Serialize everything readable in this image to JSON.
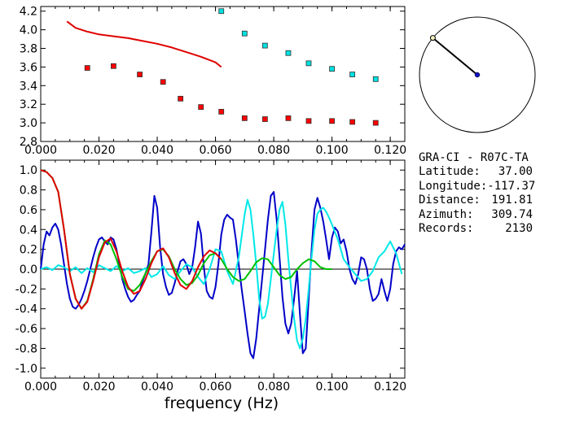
{
  "station": {
    "code": "GRA-CI - R07C-TA",
    "latitude_label": "Latitude:",
    "latitude": "37.00",
    "longitude_label": "Longitude:",
    "longitude": "-117.37",
    "distance_label": "Distance:",
    "distance": "191.81",
    "azimuth_label": "Azimuth:",
    "azimuth": "309.74",
    "records_label": "Records:",
    "records": "2130"
  },
  "azimuth_dial": {
    "azimuth_deg": 309.74
  },
  "chart_data": [
    {
      "type": "scatter",
      "title": "",
      "xlabel": "",
      "ylabel": "",
      "xlim": [
        0.0,
        0.125
      ],
      "ylim": [
        2.8,
        4.25
      ],
      "x_ticks": [
        "0.000",
        "0.020",
        "0.040",
        "0.060",
        "0.080",
        "0.100",
        "0.120"
      ],
      "y_ticks": [
        "2.8",
        "3.0",
        "3.2",
        "3.4",
        "3.6",
        "3.8",
        "4.0",
        "4.2"
      ],
      "series": [
        {
          "color": "#ff0000",
          "kind": "markers",
          "x": [
            0.016,
            0.025,
            0.034,
            0.042,
            0.048,
            0.055,
            0.062,
            0.07,
            0.077,
            0.085,
            0.092,
            0.1,
            0.107,
            0.115
          ],
          "y": [
            3.59,
            3.61,
            3.52,
            3.44,
            3.26,
            3.17,
            3.12,
            3.05,
            3.04,
            3.05,
            3.02,
            3.02,
            3.01,
            3.0
          ]
        },
        {
          "color": "#00e0e0",
          "kind": "markers",
          "x": [
            0.062,
            0.07,
            0.077,
            0.085,
            0.092,
            0.1,
            0.107,
            0.115
          ],
          "y": [
            4.2,
            3.96,
            3.83,
            3.75,
            3.64,
            3.58,
            3.52,
            3.47
          ]
        },
        {
          "color": "#e00000",
          "kind": "line",
          "x": [
            0.009,
            0.012,
            0.016,
            0.02,
            0.025,
            0.03,
            0.035,
            0.04,
            0.045,
            0.05,
            0.055,
            0.06,
            0.062
          ],
          "y": [
            4.09,
            4.02,
            3.98,
            3.95,
            3.93,
            3.91,
            3.88,
            3.85,
            3.81,
            3.76,
            3.71,
            3.65,
            3.6
          ]
        }
      ]
    },
    {
      "type": "line",
      "title": "",
      "xlabel": "frequency (Hz)",
      "ylabel": "",
      "xlim": [
        0.0,
        0.125
      ],
      "ylim": [
        -1.1,
        1.1
      ],
      "x_ticks": [
        "0.000",
        "0.020",
        "0.040",
        "0.060",
        "0.080",
        "0.100",
        "0.120"
      ],
      "y_ticks": [
        "1.0",
        "0.8",
        "0.6",
        "0.4",
        "0.2",
        "0.0",
        "-0.2",
        "-0.4",
        "-0.6",
        "-0.8",
        "-1.0"
      ],
      "series": [
        {
          "color": "#0000c8",
          "x": [
            0.0,
            0.001,
            0.002,
            0.003,
            0.004,
            0.005,
            0.006,
            0.007,
            0.008,
            0.009,
            0.01,
            0.011,
            0.012,
            0.013,
            0.014,
            0.015,
            0.016,
            0.017,
            0.018,
            0.019,
            0.02,
            0.021,
            0.022,
            0.023,
            0.024,
            0.025,
            0.026,
            0.027,
            0.028,
            0.029,
            0.03,
            0.031,
            0.032,
            0.033,
            0.034,
            0.035,
            0.036,
            0.037,
            0.038,
            0.039,
            0.04,
            0.041,
            0.042,
            0.043,
            0.044,
            0.045,
            0.046,
            0.047,
            0.048,
            0.049,
            0.05,
            0.051,
            0.052,
            0.053,
            0.054,
            0.055,
            0.056,
            0.057,
            0.058,
            0.059,
            0.06,
            0.061,
            0.062,
            0.063,
            0.064,
            0.065,
            0.066,
            0.067,
            0.068,
            0.069,
            0.07,
            0.071,
            0.072,
            0.073,
            0.074,
            0.075,
            0.076,
            0.077,
            0.078,
            0.079,
            0.08,
            0.081,
            0.082,
            0.083,
            0.084,
            0.085,
            0.086,
            0.087,
            0.088,
            0.089,
            0.09,
            0.091,
            0.092,
            0.093,
            0.094,
            0.095,
            0.096,
            0.097,
            0.098,
            0.099,
            0.1,
            0.101,
            0.102,
            0.103,
            0.104,
            0.105,
            0.106,
            0.107,
            0.108,
            0.109,
            0.11,
            0.111,
            0.112,
            0.113,
            0.114,
            0.115,
            0.116,
            0.117,
            0.118,
            0.119,
            0.12,
            0.121,
            0.122,
            0.123,
            0.124,
            0.125
          ],
          "y": [
            0.0,
            0.25,
            0.38,
            0.34,
            0.42,
            0.46,
            0.4,
            0.25,
            0.05,
            -0.15,
            -0.3,
            -0.38,
            -0.4,
            -0.36,
            -0.3,
            -0.22,
            -0.12,
            0.0,
            0.12,
            0.22,
            0.3,
            0.32,
            0.28,
            0.25,
            0.32,
            0.3,
            0.2,
            0.05,
            -0.1,
            -0.2,
            -0.28,
            -0.33,
            -0.31,
            -0.26,
            -0.22,
            -0.12,
            -0.04,
            0.05,
            0.38,
            0.74,
            0.62,
            0.22,
            -0.05,
            -0.18,
            -0.26,
            -0.24,
            -0.14,
            -0.02,
            0.08,
            0.1,
            0.05,
            -0.05,
            0.02,
            0.22,
            0.48,
            0.36,
            0.02,
            -0.22,
            -0.28,
            -0.3,
            -0.18,
            0.05,
            0.35,
            0.5,
            0.55,
            0.52,
            0.5,
            0.3,
            0.04,
            -0.2,
            -0.42,
            -0.65,
            -0.85,
            -0.9,
            -0.7,
            -0.4,
            -0.1,
            0.2,
            0.5,
            0.74,
            0.78,
            0.5,
            0.12,
            -0.28,
            -0.55,
            -0.65,
            -0.55,
            -0.3,
            -0.02,
            -0.46,
            -0.85,
            -0.8,
            -0.3,
            0.2,
            0.6,
            0.72,
            0.62,
            0.48,
            0.3,
            0.1,
            0.32,
            0.42,
            0.38,
            0.26,
            0.3,
            0.18,
            0.0,
            -0.1,
            -0.15,
            -0.05,
            0.12,
            0.1,
            0.0,
            -0.2,
            -0.32,
            -0.3,
            -0.25,
            -0.1,
            -0.22,
            -0.32,
            -0.2,
            0.05,
            0.18,
            0.22,
            0.2,
            0.25
          ]
        },
        {
          "color": "#00e8e8",
          "x": [
            0.0,
            0.002,
            0.004,
            0.006,
            0.008,
            0.01,
            0.012,
            0.014,
            0.016,
            0.018,
            0.02,
            0.022,
            0.024,
            0.026,
            0.028,
            0.03,
            0.032,
            0.034,
            0.036,
            0.038,
            0.04,
            0.042,
            0.044,
            0.046,
            0.048,
            0.05,
            0.052,
            0.054,
            0.056,
            0.058,
            0.06,
            0.062,
            0.064,
            0.066,
            0.068,
            0.07,
            0.071,
            0.072,
            0.073,
            0.074,
            0.075,
            0.076,
            0.077,
            0.078,
            0.079,
            0.08,
            0.081,
            0.082,
            0.083,
            0.084,
            0.085,
            0.086,
            0.087,
            0.088,
            0.089,
            0.09,
            0.091,
            0.092,
            0.093,
            0.094,
            0.095,
            0.096,
            0.097,
            0.098,
            0.099,
            0.1,
            0.102,
            0.104,
            0.106,
            0.108,
            0.11,
            0.112,
            0.114,
            0.116,
            0.118,
            0.12,
            0.122,
            0.124
          ],
          "y": [
            0.0,
            0.02,
            -0.01,
            0.04,
            0.02,
            -0.02,
            0.02,
            -0.04,
            0.01,
            -0.03,
            0.04,
            0.01,
            -0.02,
            0.03,
            -0.02,
            0.01,
            -0.04,
            -0.02,
            0.01,
            -0.08,
            -0.05,
            0.03,
            -0.06,
            -0.1,
            -0.02,
            0.05,
            0.02,
            -0.08,
            -0.15,
            0.0,
            0.2,
            0.18,
            -0.02,
            -0.15,
            0.12,
            0.55,
            0.7,
            0.6,
            0.35,
            0.05,
            -0.3,
            -0.5,
            -0.48,
            -0.35,
            -0.1,
            0.15,
            0.4,
            0.6,
            0.68,
            0.45,
            0.1,
            -0.2,
            -0.5,
            -0.72,
            -0.8,
            -0.7,
            -0.5,
            -0.2,
            0.12,
            0.4,
            0.56,
            0.6,
            0.62,
            0.58,
            0.52,
            0.45,
            0.3,
            0.1,
            0.02,
            -0.05,
            -0.12,
            -0.1,
            -0.02,
            0.12,
            0.18,
            0.28,
            0.16,
            -0.05
          ]
        },
        {
          "color": "#00c000",
          "x": [
            0.0,
            0.002,
            0.004,
            0.006,
            0.008,
            0.01,
            0.012,
            0.014,
            0.016,
            0.018,
            0.02,
            0.022,
            0.024,
            0.026,
            0.028,
            0.03,
            0.032,
            0.034,
            0.036,
            0.038,
            0.04,
            0.042,
            0.044,
            0.046,
            0.048,
            0.05,
            0.052,
            0.054,
            0.056,
            0.058,
            0.06,
            0.062,
            0.064,
            0.066,
            0.068,
            0.07,
            0.072,
            0.074,
            0.076,
            0.078,
            0.08,
            0.082,
            0.084,
            0.086,
            0.088,
            0.09,
            0.092,
            0.094,
            0.096,
            0.098,
            0.1
          ],
          "y": [
            1.0,
            0.98,
            0.92,
            0.78,
            0.4,
            -0.05,
            -0.3,
            -0.4,
            -0.32,
            -0.1,
            0.15,
            0.29,
            0.25,
            0.1,
            -0.08,
            -0.2,
            -0.22,
            -0.16,
            -0.04,
            0.08,
            0.18,
            0.2,
            0.13,
            0.0,
            -0.1,
            -0.16,
            -0.14,
            -0.06,
            0.06,
            0.14,
            0.16,
            0.1,
            0.0,
            -0.08,
            -0.12,
            -0.1,
            -0.02,
            0.07,
            0.11,
            0.1,
            0.02,
            -0.06,
            -0.1,
            -0.08,
            0.0,
            0.06,
            0.1,
            0.08,
            0.02,
            0.0,
            0.0
          ]
        },
        {
          "color": "#e00000",
          "x": [
            0.0,
            0.002,
            0.004,
            0.006,
            0.008,
            0.01,
            0.012,
            0.014,
            0.016,
            0.018,
            0.02,
            0.022,
            0.024,
            0.026,
            0.028,
            0.03,
            0.032,
            0.034,
            0.036,
            0.038,
            0.04,
            0.042,
            0.044,
            0.046,
            0.048,
            0.05,
            0.052,
            0.054,
            0.056,
            0.058,
            0.06,
            0.062
          ],
          "y": [
            1.0,
            0.98,
            0.92,
            0.78,
            0.4,
            -0.05,
            -0.3,
            -0.4,
            -0.33,
            -0.12,
            0.12,
            0.27,
            0.31,
            0.18,
            -0.02,
            -0.18,
            -0.25,
            -0.22,
            -0.1,
            0.06,
            0.18,
            0.21,
            0.12,
            -0.04,
            -0.16,
            -0.2,
            -0.12,
            0.02,
            0.13,
            0.19,
            0.16,
            0.1
          ]
        }
      ],
      "zero_line": true
    }
  ]
}
